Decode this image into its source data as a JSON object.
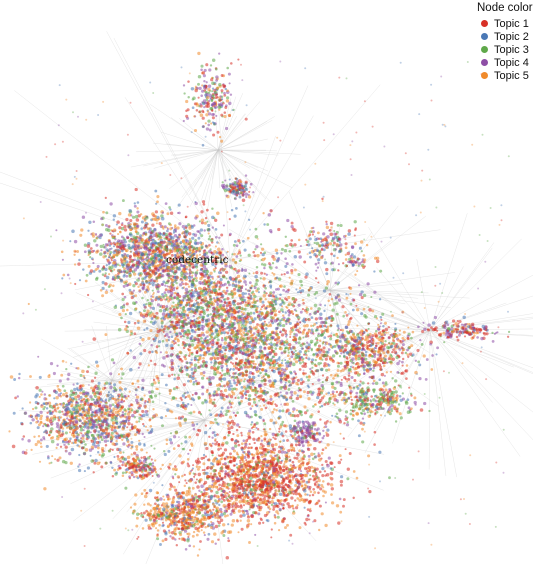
{
  "legend": {
    "title": "Node color",
    "items": [
      {
        "label": "Topic 1",
        "color": "#d73027"
      },
      {
        "label": "Topic 2",
        "color": "#4a78b5"
      },
      {
        "label": "Topic 3",
        "color": "#5fa84a"
      },
      {
        "label": "Topic 4",
        "color": "#8e4fa6"
      },
      {
        "label": "Topic 5",
        "color": "#f08a2b"
      }
    ]
  },
  "node_label": "codecentric",
  "edge_color": "#c8c8c8"
}
